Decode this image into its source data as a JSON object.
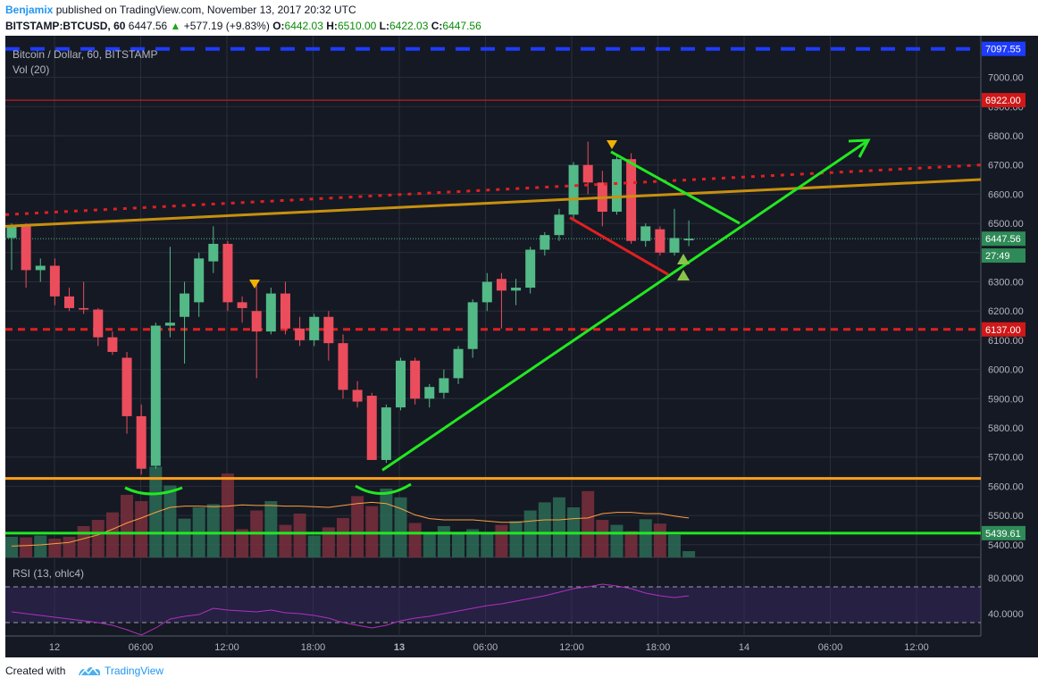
{
  "header": {
    "author": "Benjamix",
    "published": "published on TradingView.com, November 13, 2017 20:32 UTC",
    "symbol": "BITSTAMP:BTCUSD, 60",
    "last": "6447.56",
    "change_arrow": "▲",
    "change": "+577.19 (+9.83%)",
    "o_label": "O:",
    "o": "6442.03",
    "h_label": "H:",
    "h": "6510.00",
    "l_label": "L:",
    "l": "6422.03",
    "c_label": "C:",
    "c": "6447.56"
  },
  "legend": {
    "title": "Bitcoin / Dollar, 60, BITSTAMP",
    "vol": "Vol (20)",
    "rsi": "RSI (13, ohlc4)"
  },
  "colors": {
    "background": "#151924",
    "grid": "#2a2e39",
    "up": "#53b987",
    "down": "#eb4d5c",
    "trend": "#22e822",
    "support": "#ff9f1c",
    "channel": "#c8900f",
    "resistance_dotted": "#e02020",
    "blue_dash": "#1e3cff",
    "rsi_line": "#b030c0",
    "rsi_band": "#3b2a6a"
  },
  "footer": {
    "created": "Created with",
    "brand": "TradingView"
  },
  "chart_data": {
    "type": "candlestick",
    "title": "Bitcoin / Dollar, 60, BITSTAMP",
    "interval": "60",
    "x_ticks": [
      "12",
      "06:00",
      "12:00",
      "18:00",
      "13",
      "06:00",
      "12:00",
      "18:00",
      "14",
      "06:00",
      "12:00"
    ],
    "y_ticks": [
      5400,
      5500,
      5600,
      5700,
      5800,
      5900,
      6000,
      6100,
      6200,
      6300,
      6400,
      6500,
      6600,
      6700,
      6800,
      6900,
      7000
    ],
    "ylim": [
      5380,
      7130
    ],
    "price_labels": [
      {
        "text": "7097.55",
        "value": 7097.55,
        "kind": "blue"
      },
      {
        "text": "6922.00",
        "value": 6922.0,
        "kind": "red"
      },
      {
        "text": "6447.56",
        "value": 6447.56,
        "kind": "green"
      },
      {
        "text": "27:49",
        "value": 6390,
        "kind": "green"
      },
      {
        "text": "6137.00",
        "value": 6137.0,
        "kind": "red"
      },
      {
        "text": "5439.61",
        "value": 5439.61,
        "kind": "green"
      }
    ],
    "candles": [
      {
        "t": 0,
        "o": 6450,
        "h": 6500,
        "l": 6340,
        "c": 6490
      },
      {
        "t": 1,
        "o": 6490,
        "h": 6500,
        "l": 6280,
        "c": 6340
      },
      {
        "t": 2,
        "o": 6340,
        "h": 6380,
        "l": 6300,
        "c": 6355
      },
      {
        "t": 3,
        "o": 6355,
        "h": 6380,
        "l": 6220,
        "c": 6250
      },
      {
        "t": 4,
        "o": 6250,
        "h": 6280,
        "l": 6200,
        "c": 6210
      },
      {
        "t": 5,
        "o": 6210,
        "h": 6300,
        "l": 6190,
        "c": 6205
      },
      {
        "t": 6,
        "o": 6205,
        "h": 6210,
        "l": 6080,
        "c": 6110
      },
      {
        "t": 7,
        "o": 6110,
        "h": 6130,
        "l": 6050,
        "c": 6060
      },
      {
        "t": 8,
        "o": 6040,
        "h": 6060,
        "l": 5780,
        "c": 5840
      },
      {
        "t": 9,
        "o": 5840,
        "h": 5880,
        "l": 5640,
        "c": 5660
      },
      {
        "t": 10,
        "o": 5670,
        "h": 6160,
        "l": 5660,
        "c": 6150
      },
      {
        "t": 11,
        "o": 6150,
        "h": 6420,
        "l": 6110,
        "c": 6160
      },
      {
        "t": 12,
        "o": 6180,
        "h": 6300,
        "l": 6020,
        "c": 6260
      },
      {
        "t": 13,
        "o": 6230,
        "h": 6400,
        "l": 6180,
        "c": 6380
      },
      {
        "t": 14,
        "o": 6370,
        "h": 6490,
        "l": 6330,
        "c": 6430
      },
      {
        "t": 15,
        "o": 6430,
        "h": 6440,
        "l": 6200,
        "c": 6230
      },
      {
        "t": 16,
        "o": 6230,
        "h": 6250,
        "l": 6160,
        "c": 6210
      },
      {
        "t": 17,
        "o": 6200,
        "h": 6290,
        "l": 5970,
        "c": 6130
      },
      {
        "t": 18,
        "o": 6130,
        "h": 6280,
        "l": 6120,
        "c": 6260
      },
      {
        "t": 19,
        "o": 6260,
        "h": 6300,
        "l": 6120,
        "c": 6140
      },
      {
        "t": 20,
        "o": 6140,
        "h": 6180,
        "l": 6080,
        "c": 6100
      },
      {
        "t": 21,
        "o": 6100,
        "h": 6190,
        "l": 6080,
        "c": 6180
      },
      {
        "t": 22,
        "o": 6180,
        "h": 6200,
        "l": 6030,
        "c": 6090
      },
      {
        "t": 23,
        "o": 6090,
        "h": 6120,
        "l": 5900,
        "c": 5930
      },
      {
        "t": 24,
        "o": 5930,
        "h": 5960,
        "l": 5870,
        "c": 5890
      },
      {
        "t": 25,
        "o": 5910,
        "h": 5920,
        "l": 5690,
        "c": 5690
      },
      {
        "t": 26,
        "o": 5690,
        "h": 5880,
        "l": 5680,
        "c": 5870
      },
      {
        "t": 27,
        "o": 5870,
        "h": 6040,
        "l": 5860,
        "c": 6030
      },
      {
        "t": 28,
        "o": 6030,
        "h": 6040,
        "l": 5880,
        "c": 5900
      },
      {
        "t": 29,
        "o": 5900,
        "h": 5950,
        "l": 5870,
        "c": 5940
      },
      {
        "t": 30,
        "o": 5920,
        "h": 6000,
        "l": 5900,
        "c": 5970
      },
      {
        "t": 31,
        "o": 5970,
        "h": 6080,
        "l": 5950,
        "c": 6070
      },
      {
        "t": 32,
        "o": 6070,
        "h": 6240,
        "l": 6040,
        "c": 6230
      },
      {
        "t": 33,
        "o": 6230,
        "h": 6330,
        "l": 6200,
        "c": 6300
      },
      {
        "t": 34,
        "o": 6310,
        "h": 6330,
        "l": 6140,
        "c": 6270
      },
      {
        "t": 35,
        "o": 6270,
        "h": 6310,
        "l": 6220,
        "c": 6280
      },
      {
        "t": 36,
        "o": 6280,
        "h": 6420,
        "l": 6260,
        "c": 6410
      },
      {
        "t": 37,
        "o": 6410,
        "h": 6470,
        "l": 6390,
        "c": 6460
      },
      {
        "t": 38,
        "o": 6460,
        "h": 6550,
        "l": 6440,
        "c": 6530
      },
      {
        "t": 39,
        "o": 6530,
        "h": 6710,
        "l": 6510,
        "c": 6700
      },
      {
        "t": 40,
        "o": 6700,
        "h": 6780,
        "l": 6600,
        "c": 6640
      },
      {
        "t": 41,
        "o": 6640,
        "h": 6680,
        "l": 6490,
        "c": 6540
      },
      {
        "t": 42,
        "o": 6540,
        "h": 6730,
        "l": 6530,
        "c": 6720
      },
      {
        "t": 43,
        "o": 6720,
        "h": 6740,
        "l": 6430,
        "c": 6440
      },
      {
        "t": 44,
        "o": 6440,
        "h": 6500,
        "l": 6420,
        "c": 6490
      },
      {
        "t": 45,
        "o": 6480,
        "h": 6490,
        "l": 6390,
        "c": 6400
      },
      {
        "t": 46,
        "o": 6400,
        "h": 6550,
        "l": 6390,
        "c": 6450
      },
      {
        "t": 47,
        "o": 6442.03,
        "h": 6510,
        "l": 6422.03,
        "c": 6447.56
      }
    ],
    "volume": [
      0.33,
      0.32,
      0.35,
      0.3,
      0.33,
      0.5,
      0.6,
      0.72,
      1.0,
      0.9,
      1.45,
      1.15,
      0.62,
      0.8,
      0.85,
      1.34,
      0.45,
      0.75,
      0.9,
      0.52,
      0.7,
      0.35,
      0.48,
      0.63,
      0.98,
      0.82,
      1.1,
      0.96,
      0.55,
      0.38,
      0.5,
      0.4,
      0.45,
      0.4,
      0.52,
      0.58,
      0.75,
      0.88,
      0.96,
      0.8,
      1.06,
      0.6,
      0.52,
      0.42,
      0.61,
      0.54,
      0.36,
      0.1
    ],
    "volume_ma": [
      0.18,
      0.19,
      0.2,
      0.22,
      0.24,
      0.3,
      0.36,
      0.45,
      0.55,
      0.63,
      0.72,
      0.8,
      0.82,
      0.82,
      0.81,
      0.82,
      0.84,
      0.83,
      0.83,
      0.82,
      0.82,
      0.81,
      0.8,
      0.83,
      0.86,
      0.88,
      0.86,
      0.78,
      0.68,
      0.62,
      0.6,
      0.6,
      0.6,
      0.58,
      0.56,
      0.56,
      0.58,
      0.6,
      0.6,
      0.62,
      0.63,
      0.7,
      0.72,
      0.72,
      0.7,
      0.7,
      0.66,
      0.63
    ],
    "rsi": {
      "label": "RSI (13, ohlc4)",
      "levels": [
        70,
        30
      ],
      "y_ticks": [
        80,
        40
      ],
      "values": [
        42,
        40,
        38,
        36,
        34,
        32,
        30,
        27,
        22,
        16,
        24,
        34,
        37,
        39,
        46,
        44,
        43,
        42,
        44,
        41,
        40,
        38,
        35,
        30,
        27,
        24,
        27,
        32,
        35,
        37,
        40,
        43,
        46,
        49,
        51,
        54,
        57,
        60,
        64,
        68,
        70,
        73,
        71,
        68,
        63,
        60,
        58,
        60
      ]
    }
  }
}
